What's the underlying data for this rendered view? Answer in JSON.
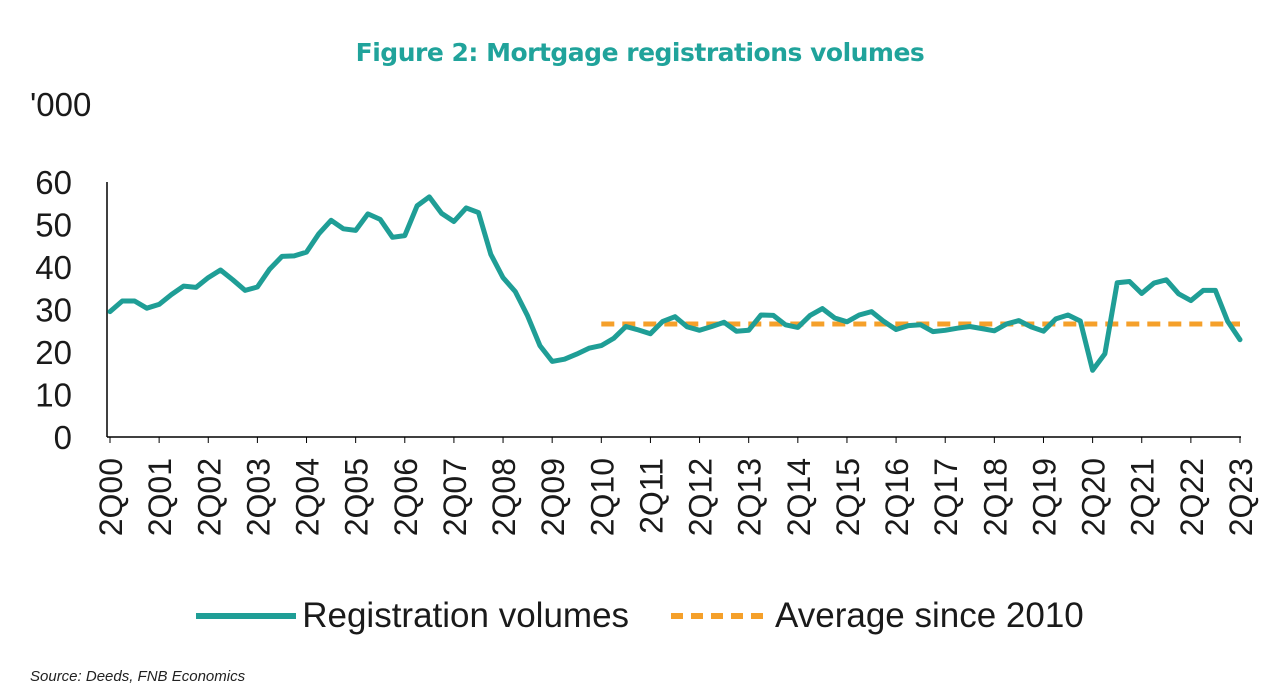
{
  "chart_data": {
    "type": "line",
    "title": "Figure 2: Mortgage registrations volumes",
    "ylabel": "'000",
    "xlabel": "",
    "ylim": [
      0,
      60
    ],
    "yticks": [
      0,
      10,
      20,
      30,
      40,
      50,
      60
    ],
    "grid": false,
    "legend_position": "bottom",
    "x_start": "2Q00",
    "x_tick_labels": [
      "2Q00",
      "2Q01",
      "2Q02",
      "2Q03",
      "2Q04",
      "2Q05",
      "2Q06",
      "2Q07",
      "2Q08",
      "2Q09",
      "2Q10",
      "2Q11",
      "2Q12",
      "2Q13",
      "2Q14",
      "2Q15",
      "2Q16",
      "2Q17",
      "2Q18",
      "2Q19",
      "2Q20",
      "2Q21",
      "2Q22",
      "2Q23"
    ],
    "series": [
      {
        "name": "Registration volumes",
        "color": "#1f9e96",
        "style": "solid",
        "values": [
          29.5,
          32,
          32,
          30.3,
          31.2,
          33.5,
          35.5,
          35.2,
          37.5,
          39.3,
          37,
          34.5,
          35.3,
          39.5,
          42.5,
          42.6,
          43.5,
          47.8,
          51,
          49,
          48.6,
          52.5,
          51.2,
          47,
          47.4,
          54.4,
          56.5,
          52.6,
          50.7,
          53.9,
          52.8,
          43,
          37.5,
          34.2,
          28.5,
          21.5,
          17.8,
          18.3,
          19.5,
          20.9,
          21.5,
          23.2,
          26,
          25.2,
          24.3,
          27.2,
          28.3,
          25.9,
          25.1,
          26,
          27,
          24.9,
          25.1,
          28.7,
          28.6,
          26.4,
          25.8,
          28.6,
          30.2,
          28,
          27.1,
          28.7,
          29.5,
          27.2,
          25.3,
          26.2,
          26.4,
          24.8,
          25.1,
          25.6,
          26,
          25.5,
          25,
          26.6,
          27.4,
          25.9,
          24.9,
          27.8,
          28.7,
          27.3,
          15.7,
          19.6,
          36.3,
          36.6,
          33.8,
          36.2,
          37,
          33.7,
          32.1,
          34.5,
          34.5,
          27.2,
          22.9
        ]
      },
      {
        "name": "Average since 2010",
        "color": "#f5a02a",
        "style": "dashed",
        "start_period": 40,
        "value": 26.6
      }
    ]
  },
  "source": "Source: Deeds, FNB Economics"
}
